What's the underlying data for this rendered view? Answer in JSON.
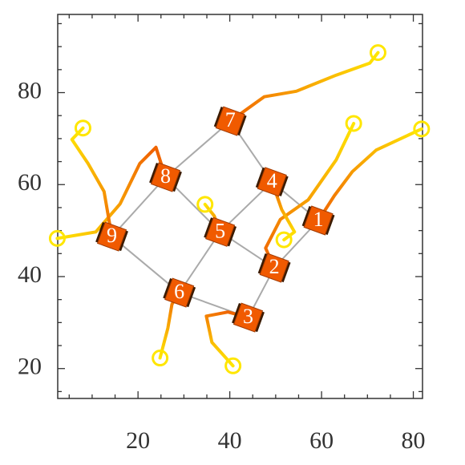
{
  "chart_data": {
    "type": "trajectory",
    "xlim": [
      2.5,
      82
    ],
    "ylim": [
      13.5,
      97
    ],
    "xticks": [
      20,
      40,
      60,
      80
    ],
    "yticks": [
      20,
      40,
      60,
      80
    ],
    "xminor": [
      5,
      10,
      15,
      25,
      30,
      35,
      45,
      50,
      55,
      65,
      70,
      75
    ],
    "yminor": [
      15,
      25,
      30,
      35,
      45,
      50,
      55,
      65,
      70,
      75,
      85,
      90,
      95
    ],
    "start_color": "#ffe600",
    "end_color": "#f06400",
    "robot_color": "#f05a00",
    "wheel_color": "#3a1a00",
    "edge_color": "#aaaaaa",
    "series": [
      {
        "name": "1",
        "x": [
          81.8,
          71.9,
          66.7,
          62.8,
          59.3
        ],
        "y": [
          72.1,
          67.5,
          62.8,
          57.6,
          52.2
        ]
      },
      {
        "name": "2",
        "x": [
          67.0,
          63.2,
          57.1,
          51.0,
          47.8,
          49.7
        ],
        "y": [
          73.3,
          65.4,
          56.7,
          52.4,
          46.2,
          41.9
        ]
      },
      {
        "name": "3",
        "x": [
          40.7,
          36.1,
          34.9,
          39.6,
          44.0
        ],
        "y": [
          20.6,
          25.7,
          31.4,
          32.3,
          31.1
        ]
      },
      {
        "name": "4",
        "x": [
          51.8,
          54.1,
          51.3,
          49.2
        ],
        "y": [
          48.0,
          49.7,
          54.6,
          60.6
        ]
      },
      {
        "name": "5",
        "x": [
          34.6,
          36.6,
          37.9
        ],
        "y": [
          55.7,
          53.2,
          49.7
        ]
      },
      {
        "name": "6",
        "x": [
          24.8,
          26.5,
          27.4,
          29.0
        ],
        "y": [
          22.3,
          28.8,
          34.0,
          36.5
        ]
      },
      {
        "name": "7",
        "x": [
          72.3,
          70.5,
          63.2,
          54.5,
          47.5,
          40.1
        ],
        "y": [
          88.7,
          86.4,
          83.8,
          80.3,
          79.1,
          73.8
        ]
      },
      {
        "name": "8",
        "x": [
          2.4,
          10.8,
          16.1,
          20.4,
          23.9,
          26.0
        ],
        "y": [
          48.3,
          49.7,
          55.8,
          64.6,
          68.1,
          61.6
        ]
      },
      {
        "name": "9",
        "x": [
          8.0,
          5.6,
          9.1,
          12.6,
          14.3
        ],
        "y": [
          72.3,
          69.8,
          64.6,
          58.5,
          48.7
        ]
      }
    ],
    "edges": [
      [
        6,
        7
      ],
      [
        6,
        3
      ],
      [
        7,
        8
      ],
      [
        7,
        4
      ],
      [
        3,
        4
      ],
      [
        3,
        0
      ],
      [
        4,
        1
      ],
      [
        0,
        1
      ],
      [
        8,
        5
      ],
      [
        5,
        4
      ],
      [
        5,
        2
      ],
      [
        1,
        2
      ]
    ]
  }
}
